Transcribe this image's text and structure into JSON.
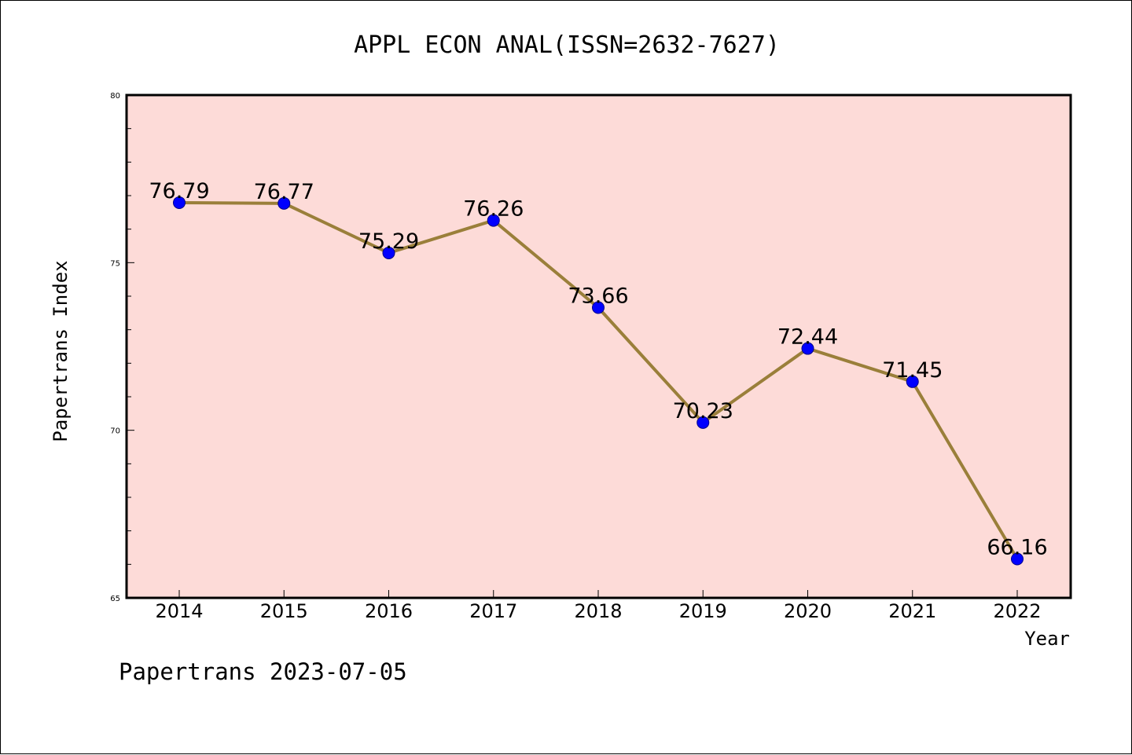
{
  "footer": "Papertrans 2023-07-05",
  "chart_data": {
    "type": "line",
    "title": "APPL ECON ANAL(ISSN=2632-7627)",
    "xlabel": "Year",
    "ylabel": "Papertrans Index",
    "x": [
      "2014",
      "2015",
      "2016",
      "2017",
      "2018",
      "2019",
      "2020",
      "2021",
      "2022"
    ],
    "series": [
      {
        "values": [
          76.79,
          76.77,
          75.29,
          76.26,
          73.66,
          70.23,
          72.44,
          71.45,
          66.16
        ]
      }
    ],
    "data_labels": [
      "76.79",
      "76.77",
      "75.29",
      "76.26",
      "73.66",
      "70.23",
      "72.44",
      "71.45",
      "66.16"
    ],
    "ylim": [
      65,
      80
    ],
    "yticks": [
      65,
      70,
      75,
      80
    ],
    "ytick_labels": [
      "65",
      "70",
      "75",
      "80"
    ],
    "grid": false,
    "legend": "none",
    "colors": {
      "plot_background": "#fddbd8",
      "line": "#9a7f3a",
      "marker": "#0000ff",
      "marker_edge": "#00008b"
    }
  }
}
